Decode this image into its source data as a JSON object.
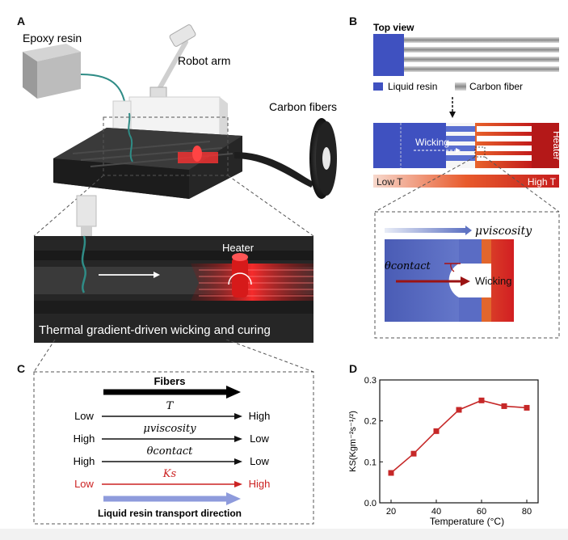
{
  "panels": {
    "a": "A",
    "b": "B",
    "c": "C",
    "d": "D"
  },
  "panel_a": {
    "epoxy_label": "Epoxy resin",
    "robot_label": "Robot arm",
    "fibers_label": "Carbon fibers",
    "heater_label": "Heater",
    "caption": "Thermal gradient-driven wicking and curing"
  },
  "panel_b": {
    "top_view": "Top view",
    "legend_resin": "Liquid resin",
    "legend_fiber": "Carbon fiber",
    "heater": "Heater",
    "wicking": "Wicking",
    "low_t": "Low T",
    "high_t": "High T",
    "mu_viscosity": "μviscosity",
    "theta_contact": "θcontact",
    "wicking_zoom": "Wicking"
  },
  "panel_c": {
    "fibers": "Fibers",
    "rows": [
      {
        "symbol": "T",
        "left": "Low",
        "right": "High"
      },
      {
        "symbol": "μviscosity",
        "left": "High",
        "right": "Low"
      },
      {
        "symbol": "θcontact",
        "left": "High",
        "right": "Low"
      },
      {
        "symbol": "Ks",
        "left": "Low",
        "right": "High"
      }
    ],
    "transport": "Liquid resin transport direction"
  },
  "colors": {
    "resin": "#3f51b5",
    "heater": "#d32f2f",
    "ks_red": "#cc2222",
    "transport_arrow": "#8e9bdc"
  },
  "chart_data": {
    "type": "line",
    "x": [
      20,
      30,
      40,
      50,
      60,
      70,
      80
    ],
    "values": [
      0.073,
      0.12,
      0.175,
      0.227,
      0.25,
      0.236,
      0.232
    ],
    "xlabel": "Temperature (°C)",
    "ylabel": "KS(Kgm⁻²s⁻¹/²)",
    "xticks": [
      "20",
      "40",
      "60",
      "80"
    ],
    "yticks": [
      "0.0",
      "0.1",
      "0.2",
      "0.3"
    ],
    "xlim": [
      15,
      85
    ],
    "ylim": [
      0,
      0.3
    ],
    "grid": false,
    "color": "#c62828"
  }
}
